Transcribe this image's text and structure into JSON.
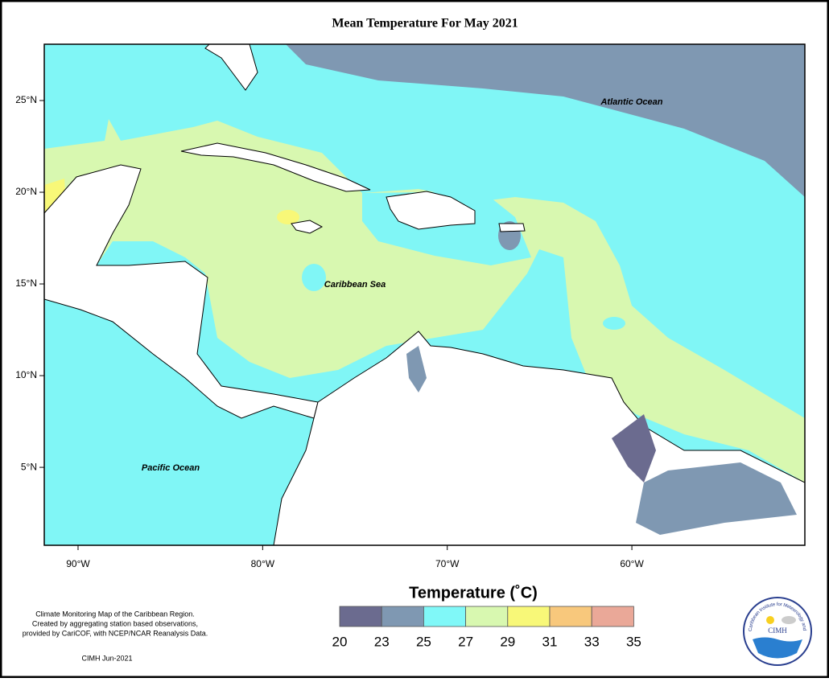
{
  "title": "Mean Temperature For May 2021",
  "map": {
    "xlim": [
      -91.83,
      -50.63
    ],
    "ylim": [
      0.75,
      28.07
    ],
    "xticks": [
      {
        "value": -90,
        "label": "90°W"
      },
      {
        "value": -80,
        "label": "80°W"
      },
      {
        "value": -70,
        "label": "70°W"
      },
      {
        "value": -60,
        "label": "60°W"
      }
    ],
    "yticks": [
      {
        "value": 5,
        "label": "5°N"
      },
      {
        "value": 10,
        "label": "10°N"
      },
      {
        "value": 15,
        "label": "15°N"
      },
      {
        "value": 20,
        "label": "20°N"
      },
      {
        "value": 25,
        "label": "25°N"
      }
    ]
  },
  "labels": [
    "Atlantic Ocean",
    "Caribbean Sea",
    "Pacific Ocean"
  ],
  "legend": {
    "title": "Temperature (˚C)",
    "bins": [
      20,
      23,
      25,
      27,
      29,
      31,
      33,
      35
    ],
    "colors": [
      "#6b6b8f",
      "#7f98b2",
      "#80f8f8",
      "#d8f8b0",
      "#f8f878",
      "#f8c87c",
      "#eaa898"
    ]
  },
  "footnote": {
    "lines": [
      "Climate Monitoring Map of the Caribbean Region.",
      "Created by aggregating station based observations,",
      "provided by CariCOF, with NCEP/NCAR Reanalysis Data."
    ],
    "credit": "CIMH Jun-2021"
  },
  "logo": {
    "name": "CIMH",
    "ring": "Caribbean Institute for Meteorology and Hydrology"
  }
}
